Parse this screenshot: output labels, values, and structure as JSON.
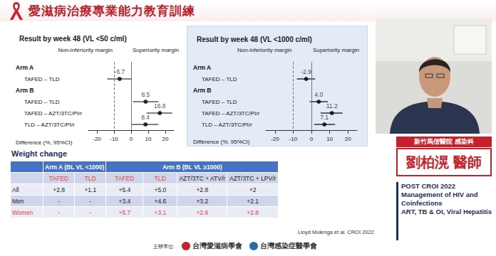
{
  "header": {
    "title": "愛滋病治療專業能力教育訓練"
  },
  "chart_data": [
    {
      "type": "forest",
      "title": "Result by week 48 (VL <50 c/ml)",
      "x_label": "Difference (%, 95%CI)",
      "xlim": [
        -25,
        25
      ],
      "xticks": [
        -20,
        -10,
        0,
        10,
        20
      ],
      "grid": false,
      "color": "#000000",
      "categories": [
        "Arm A",
        "TAFED – TLD",
        "Arm B",
        "TAFED – TLD",
        "TAFED – AZT/3TC/PI/r",
        "TLD – AZT/3TC/PI/r"
      ],
      "values": [
        null,
        -6.7,
        null,
        8.5,
        16.8,
        8.4
      ],
      "value_labels": [
        null,
        "-6.7",
        null,
        "8.5",
        "16.8",
        "8.4"
      ],
      "ci_low": [
        null,
        -14,
        null,
        1,
        9,
        0.5
      ],
      "ci_high": [
        null,
        0.5,
        null,
        16,
        24,
        16
      ],
      "annotations": [
        {
          "text": "Non-inferiority margin",
          "x": -10,
          "line_style": "dashed"
        },
        {
          "text": "Superiority margin",
          "x": 0,
          "line_style": "solid"
        }
      ]
    },
    {
      "type": "forest",
      "title": "Result by week 48 (VL <1000 c/ml)",
      "x_label": "Difference (%, 95%CI)",
      "xlim": [
        -25,
        25
      ],
      "xticks": [
        -20,
        -10,
        0,
        10,
        20
      ],
      "grid": false,
      "color": "#000000",
      "categories": [
        "Arm A",
        "TAFED – TLD",
        "Arm B",
        "TAFED – TLD",
        "TAFED – AZT/3TC/PI/r",
        "TLD – AZT/3TC/PI/r"
      ],
      "values": [
        null,
        -2.9,
        null,
        4.0,
        11.2,
        7.1
      ],
      "value_labels": [
        null,
        "-2.9",
        null,
        "4.0",
        "11.2",
        "7.1"
      ],
      "ci_low": [
        null,
        -8,
        null,
        -1,
        5,
        1.5
      ],
      "ci_high": [
        null,
        2,
        null,
        9,
        17,
        13
      ],
      "annotations": [
        {
          "text": "Non-inferiority margin",
          "x": -10,
          "line_style": "dashed"
        },
        {
          "text": "Superiority margin",
          "x": 0,
          "line_style": "solid"
        }
      ]
    }
  ],
  "table": {
    "title": "Weight change",
    "groups": [
      {
        "label": "Arm A (BL VL <1000)",
        "span": 2
      },
      {
        "label": "Arm B (BL VL ≥1000)",
        "span": 4
      }
    ],
    "columns": [
      {
        "label": "TAFED",
        "color": "#e8413c"
      },
      {
        "label": "TLD",
        "color": "#e8413c"
      },
      {
        "label": "TAFED",
        "color": "#e8413c"
      },
      {
        "label": "TLD",
        "color": "#e8413c"
      },
      {
        "label": "AZT/3TC + ATV/r",
        "color": "#222222"
      },
      {
        "label": "AZT/3TC + LPV/r",
        "color": "#222222"
      }
    ],
    "rows": [
      {
        "label": "All",
        "color": "#222222",
        "cells": [
          "+2.8",
          "+1.1",
          "+5.4",
          "+5.0",
          "+2.8",
          "+2"
        ]
      },
      {
        "label": "Men",
        "color": "#222222",
        "cells": [
          "-",
          "-",
          "+3.4",
          "+4.6",
          "+3.2",
          "+2.1"
        ]
      },
      {
        "label": "Women",
        "color": "#e8413c",
        "cells": [
          "-",
          "-",
          "+5.7",
          "+3.1",
          "+2.6",
          "+2.8"
        ]
      }
    ]
  },
  "citation": "Lloyd Mulenga et al. CROI 2022",
  "speaker": {
    "affiliation": "新竹馬偕醫院 感染科",
    "name": "劉柏滉 醫師",
    "talk": [
      "POST CROI 2022",
      "Management of HIV and",
      "Coinfections",
      "ART, TB & OI, Viral Hepatitis"
    ]
  },
  "footer": {
    "label": "主辦單位:",
    "organizers": [
      "台灣愛滋病學會",
      "台灣感染症醫學會"
    ]
  }
}
